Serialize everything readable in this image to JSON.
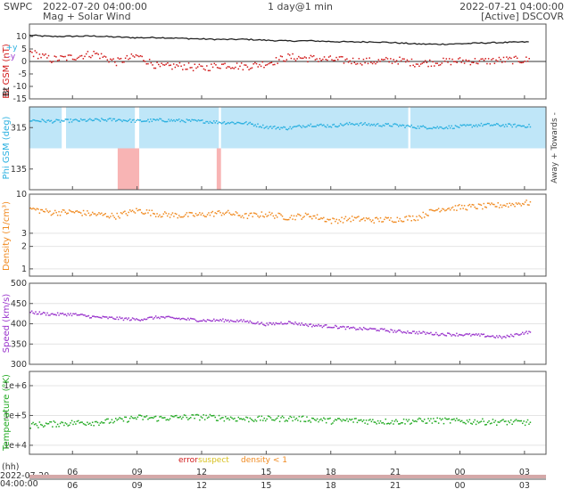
{
  "header": {
    "source": "SWPC",
    "subtitle": "Mag + Solar Wind",
    "start_time": "2022-07-20 04:00:00",
    "span": "1 day@1 min",
    "end_time": "2022-07-21 04:00:00",
    "satellite": "[Active] DSCOVR"
  },
  "colors": {
    "bt": "#222222",
    "bz": "#d01818",
    "phi": "#2ab0e0",
    "phi_fill": "#bfe6f8",
    "phi_err": "#f8b4b4",
    "density": "#f08a20",
    "speed": "#9933cc",
    "temperature": "#22aa22"
  },
  "chart_data": [
    {
      "type": "line",
      "panel": "mag",
      "ylabel_bt": "Bt",
      "ylabel_bz": "Bz GSM (nT)",
      "legend_icons": [
        "+x",
        "-y",
        "+y"
      ],
      "ylim": [
        -15,
        15
      ],
      "y_ticks": [
        "-15",
        "-10",
        "-5",
        "0",
        "5",
        "10"
      ],
      "x_hours": [
        4,
        5,
        6,
        7,
        8,
        9,
        10,
        11,
        12,
        13,
        14,
        15,
        16,
        17,
        18,
        19,
        20,
        21,
        22,
        23,
        24,
        25,
        26,
        27
      ],
      "series": [
        {
          "values": [
            10.5,
            10.0,
            10.1,
            10.2,
            9.8,
            9.5,
            9.6,
            9.3,
            9.0,
            8.8,
            8.9,
            8.5,
            8.2,
            8.3,
            8.0,
            7.8,
            7.9,
            7.5,
            7.0,
            6.9,
            7.1,
            7.4,
            7.6,
            7.8
          ]
        },
        {
          "values": [
            4.0,
            1.0,
            2.0,
            3.5,
            0.0,
            2.5,
            -2.0,
            -1.5,
            -2.5,
            -1.0,
            -1.8,
            -0.5,
            2.0,
            1.5,
            1.0,
            0.5,
            0.2,
            0.8,
            -0.5,
            0.0,
            0.5,
            0.3,
            0.8,
            0.8
          ]
        }
      ]
    },
    {
      "type": "scatter",
      "panel": "phi",
      "ylabel": "Phi GSM (deg)",
      "side_label": "Away + Towards -",
      "ylim": [
        45,
        405
      ],
      "y_ticks": [
        "135",
        "315"
      ],
      "x_hours": [
        4,
        5,
        6,
        7,
        8,
        9,
        10,
        11,
        12,
        13,
        14,
        15,
        16,
        17,
        18,
        19,
        20,
        21,
        22,
        23,
        24,
        25,
        26,
        27
      ],
      "values": [
        350,
        345,
        348,
        350,
        352,
        346,
        350,
        348,
        345,
        340,
        338,
        320,
        315,
        330,
        325,
        335,
        330,
        328,
        320,
        318,
        322,
        330,
        328,
        325
      ],
      "err_spans": [
        [
          8.1,
          9.1
        ],
        [
          12.7,
          12.9
        ]
      ]
    },
    {
      "type": "scatter",
      "panel": "density",
      "ylabel": "Density (1/cm³)",
      "yscale": "log",
      "ylim": [
        0.8,
        10
      ],
      "y_ticks": [
        "1",
        "2",
        "3",
        "10"
      ],
      "x_hours": [
        4,
        5,
        6,
        7,
        8,
        9,
        10,
        11,
        12,
        13,
        14,
        15,
        16,
        17,
        18,
        19,
        20,
        21,
        22,
        23,
        24,
        25,
        26,
        27
      ],
      "values": [
        6.5,
        5.8,
        5.9,
        5.5,
        5.2,
        6.2,
        5.5,
        5.3,
        5.4,
        5.8,
        5.2,
        5.5,
        5.0,
        5.3,
        4.5,
        4.8,
        4.6,
        4.7,
        5.0,
        6.5,
        6.8,
        7.0,
        7.3,
        7.8
      ]
    },
    {
      "type": "scatter",
      "panel": "speed",
      "ylabel": "Speed (km/s)",
      "ylim": [
        300,
        500
      ],
      "y_ticks": [
        "300",
        "350",
        "400",
        "450",
        "500"
      ],
      "x_hours": [
        4,
        5,
        6,
        7,
        8,
        9,
        10,
        11,
        12,
        13,
        14,
        15,
        16,
        17,
        18,
        19,
        20,
        21,
        22,
        23,
        24,
        25,
        26,
        27
      ],
      "values": [
        430,
        425,
        425,
        418,
        415,
        412,
        418,
        414,
        410,
        410,
        408,
        400,
        405,
        398,
        395,
        390,
        388,
        383,
        380,
        376,
        375,
        373,
        368,
        380
      ]
    },
    {
      "type": "scatter",
      "panel": "temperature",
      "ylabel": "Temperature (°K)",
      "yscale": "log",
      "ylim": [
        5000,
        3000000
      ],
      "y_ticks": [
        "1e+4",
        "1e+5",
        "1e+6"
      ],
      "x_hours": [
        4,
        5,
        6,
        7,
        8,
        9,
        10,
        11,
        12,
        13,
        14,
        15,
        16,
        17,
        18,
        19,
        20,
        21,
        22,
        23,
        24,
        25,
        26,
        27
      ],
      "values": [
        50000,
        55000,
        60000,
        62000,
        70000,
        90000,
        85000,
        92000,
        95000,
        88000,
        80000,
        82000,
        85000,
        80000,
        70000,
        72000,
        68000,
        66000,
        70000,
        72000,
        68000,
        66000,
        64000,
        62000
      ]
    }
  ],
  "x_axis": {
    "tick_labels": [
      "06",
      "09",
      "12",
      "15",
      "18",
      "21",
      "00",
      "03"
    ],
    "unit_label": "(hh)",
    "date_label": "2022-07-20",
    "time_label": "04:00:00"
  },
  "legend": {
    "error": "error",
    "suspect": "suspect",
    "density": "density < 1"
  }
}
